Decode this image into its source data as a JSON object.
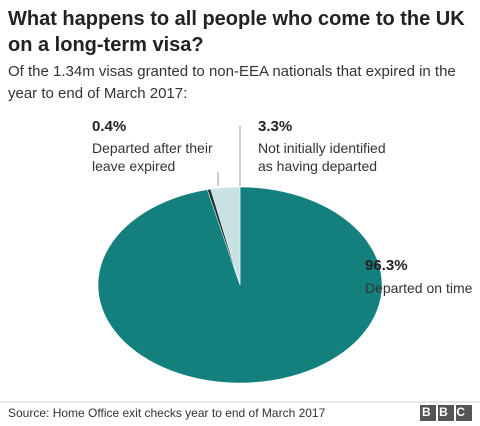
{
  "chart_data": {
    "type": "pie",
    "title": "What happens to all people who come to the UK on a long-term visa?",
    "subtitle": "Of the 1.34m visas granted to non-EEA nationals that expired in the year to end of March 2017:",
    "categories": [
      "Departed on time",
      "Departed after their leave expired",
      "Not initially identified as having departed"
    ],
    "values": [
      96.3,
      0.4,
      3.3
    ],
    "value_labels": [
      "96.3%",
      "0.4%",
      "3.3%"
    ],
    "colors": [
      "#13807e",
      "#1c3a3a",
      "#c8e2e2"
    ],
    "source": "Source: Home Office exit checks year to end of March 2017",
    "logo": "BBC"
  }
}
